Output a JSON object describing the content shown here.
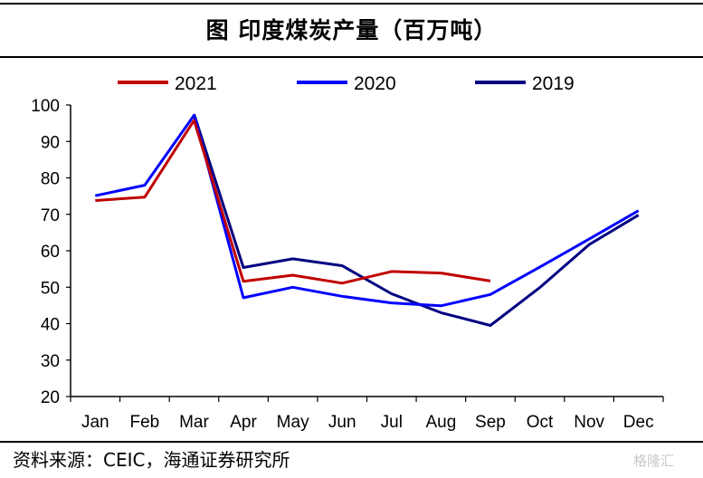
{
  "title": "图  印度煤炭产量（百万吨）",
  "source": "资料来源：CEIC，海通证券研究所",
  "watermark": "格隆汇",
  "chart_data": {
    "type": "line",
    "title": "图  印度煤炭产量（百万吨）",
    "xlabel": "",
    "ylabel": "",
    "categories": [
      "Jan",
      "Feb",
      "Mar",
      "Apr",
      "May",
      "Jun",
      "Jul",
      "Aug",
      "Sep",
      "Oct",
      "Nov",
      "Dec"
    ],
    "yticks": [
      20,
      30,
      40,
      50,
      60,
      70,
      80,
      90,
      100
    ],
    "ylim": [
      20,
      100
    ],
    "grid": false,
    "legend_position": "top",
    "series": [
      {
        "name": "2021",
        "color": "#c00000",
        "values": [
          73.8,
          74.7,
          95.8,
          51.6,
          53.3,
          51.1,
          54.3,
          53.9,
          51.7,
          null,
          null,
          null
        ]
      },
      {
        "name": "2020",
        "color": "#0000ff",
        "values": [
          75.1,
          78.0,
          97.2,
          47.1,
          50.0,
          47.5,
          45.7,
          44.9,
          48.0,
          55.5,
          63.2,
          71.0
        ]
      },
      {
        "name": "2019",
        "color": "#000080",
        "values": [
          null,
          null,
          97.5,
          55.4,
          57.8,
          55.9,
          48.2,
          43.0,
          39.5,
          49.9,
          61.7,
          69.8
        ]
      }
    ]
  }
}
